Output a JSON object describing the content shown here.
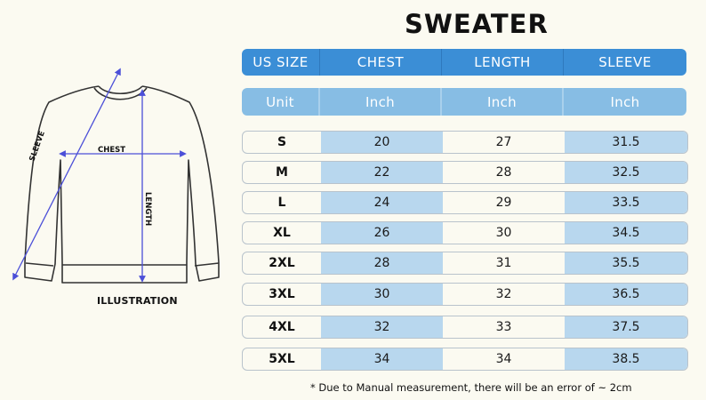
{
  "title": "SWEATER",
  "illustration": {
    "label": "ILLUSTRATION",
    "sleeve": "SLEEVE",
    "chest": "CHEST",
    "length": "LENGTH"
  },
  "table": {
    "headers": [
      "US SIZE",
      "CHEST",
      "LENGTH",
      "SLEEVE"
    ],
    "units": [
      "Unit",
      "Inch",
      "Inch",
      "Inch"
    ],
    "rows": [
      [
        "S",
        "20",
        "27",
        "31.5"
      ],
      [
        "M",
        "22",
        "28",
        "32.5"
      ],
      [
        "L",
        "24",
        "29",
        "33.5"
      ],
      [
        "XL",
        "26",
        "30",
        "34.5"
      ],
      [
        "2XL",
        "28",
        "31",
        "35.5"
      ],
      [
        "3XL",
        "30",
        "32",
        "36.5"
      ],
      [
        "4XL",
        "32",
        "33",
        "37.5"
      ],
      [
        "5XL",
        "34",
        "34",
        "38.5"
      ]
    ]
  },
  "note": "* Due to Manual measurement, there will be an error of ~ 2cm",
  "colors": {
    "header": "#3b8ed6",
    "unit_row": "#87bde4",
    "shaded_cell": "#b8d7ee",
    "arrow": "#4b4fd8"
  }
}
